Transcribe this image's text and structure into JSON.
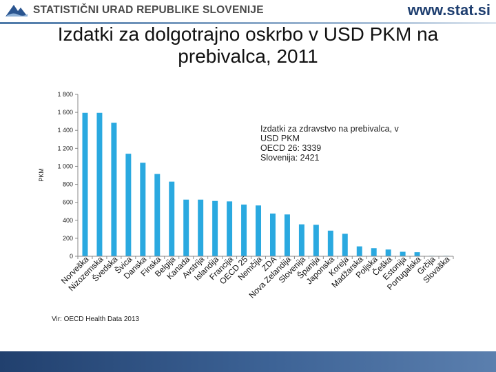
{
  "header": {
    "org_name": "STATISTIČNI URAD REPUBLIKE SLOVENIJE",
    "site_url": "www.stat.si"
  },
  "colors": {
    "bar": "#2aa9e0",
    "axis": "#888888",
    "header_text": "#4a4a4a",
    "url_text": "#1f3f70",
    "footer": "#2d5386"
  },
  "annotation": {
    "line1": "Izdatki za zdravstvo na prebivalca, v",
    "line2": "USD PKM",
    "line3": "OECD 26: 3339",
    "line4": "Slovenija: 2421"
  },
  "source": "Vir: OECD Health Data 2013",
  "chart_data": {
    "type": "bar",
    "title": "Izdatki za dolgotrajno oskrbo v USD PKM na prebivalca, 2011",
    "xlabel": "",
    "ylabel": "PKM",
    "ylim": [
      0,
      1800
    ],
    "yticks": [
      0,
      200,
      400,
      600,
      800,
      1000,
      1200,
      1400,
      1600,
      1800
    ],
    "ytick_labels": [
      "0",
      "200",
      "400",
      "600",
      "800",
      "1 000",
      "1 200",
      "1 400",
      "1 600",
      "1 800"
    ],
    "grid": false,
    "categories": [
      "Norveška",
      "Nizozemska",
      "Švedska",
      "Švica",
      "Danska",
      "Finska",
      "Belgija",
      "Kanada",
      "Avstrija",
      "Islandija",
      "Francija",
      "OECD 25",
      "Nemčija",
      "ZDA",
      "Nova Zelandija",
      "Slovenija",
      "Španija",
      "Japonska",
      "Koreja",
      "Madžarska",
      "Poljska",
      "Češka",
      "Estonija",
      "Portugalska",
      "Grčija",
      "Slovaška"
    ],
    "values": [
      1595,
      1595,
      1485,
      1140,
      1040,
      915,
      830,
      630,
      630,
      615,
      610,
      575,
      565,
      475,
      465,
      355,
      350,
      285,
      250,
      110,
      90,
      75,
      50,
      45,
      5,
      5
    ]
  }
}
